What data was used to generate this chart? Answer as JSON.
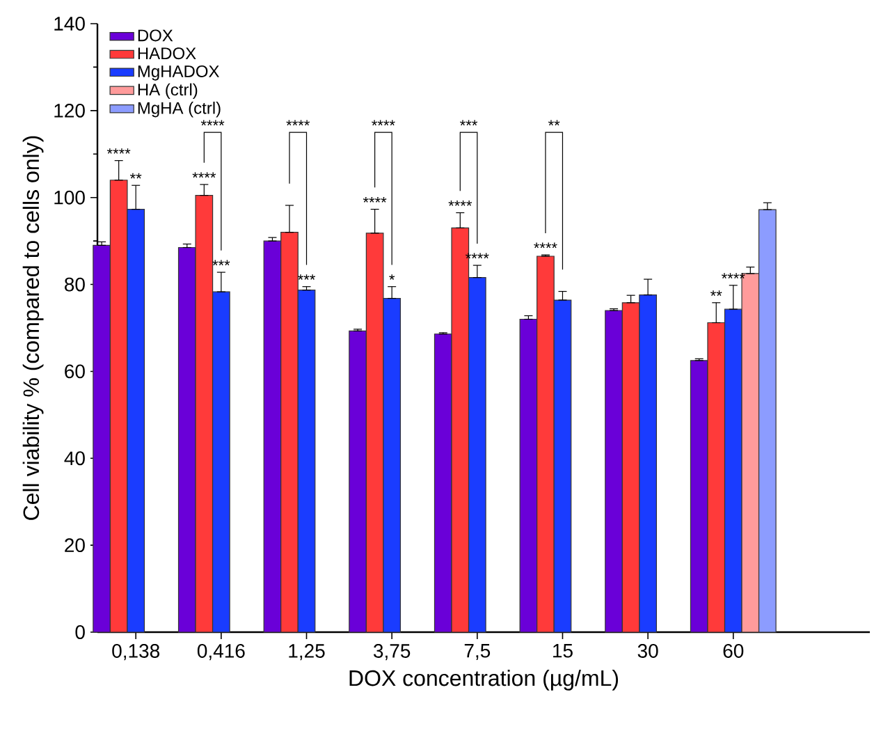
{
  "chart_data": {
    "type": "bar",
    "xlabel": "DOX concentration (µg/mL)",
    "ylabel": "Cell viability % (compared to cells only)",
    "categories": [
      "0,138",
      "0,416",
      "1,25",
      "3,75",
      "7,5",
      "15",
      "30",
      "60"
    ],
    "series": [
      {
        "name": "DOX",
        "color": "#6a00d8",
        "values": [
          89,
          88.5,
          90,
          69.3,
          68.6,
          72,
          74,
          62.5
        ],
        "errors": [
          [
            89,
            89.8
          ],
          [
            88.5,
            89.3
          ],
          [
            90,
            90.8
          ],
          [
            69.3,
            69.7
          ],
          [
            68.6,
            68.9
          ],
          [
            72,
            72.8
          ],
          [
            74,
            74.4
          ],
          [
            62.5,
            62.9
          ]
        ]
      },
      {
        "name": "HADOX",
        "color": "#ff3a3a",
        "values": [
          104,
          100.5,
          92,
          91.8,
          93,
          86.5,
          75.8,
          71.2
        ],
        "errors": [
          [
            104,
            108.5
          ],
          [
            100.5,
            103
          ],
          [
            92,
            98.2
          ],
          [
            91.8,
            97.3
          ],
          [
            93,
            96.5
          ],
          [
            86.5,
            86.8
          ],
          [
            75.8,
            77.5
          ],
          [
            71.2,
            75.8
          ]
        ]
      },
      {
        "name": "MgHADOX",
        "color": "#1a3cff",
        "values": [
          97.3,
          78.3,
          78.7,
          76.8,
          81.6,
          76.4,
          77.6,
          74.3
        ],
        "errors": [
          [
            97.3,
            102.8
          ],
          [
            78.3,
            82.8
          ],
          [
            78.7,
            79.5
          ],
          [
            76.8,
            79.5
          ],
          [
            81.6,
            84.4
          ],
          [
            76.4,
            78.4
          ],
          [
            77.6,
            81.2
          ],
          [
            74.3,
            79.8
          ]
        ]
      },
      {
        "name": "HA (ctrl)",
        "color": "#ff9b9b",
        "values": [
          null,
          null,
          null,
          null,
          null,
          null,
          null,
          82.5
        ],
        "errors": [
          null,
          null,
          null,
          null,
          null,
          null,
          null,
          [
            82.5,
            84
          ]
        ]
      },
      {
        "name": "MgHA (ctrl)",
        "color": "#8c9cff",
        "values": [
          null,
          null,
          null,
          null,
          null,
          null,
          null,
          97.2
        ],
        "errors": [
          null,
          null,
          null,
          null,
          null,
          null,
          null,
          [
            97.2,
            98.8
          ]
        ]
      }
    ],
    "ylim": [
      0,
      140
    ],
    "yticks": [
      0,
      20,
      40,
      60,
      80,
      100,
      120,
      140
    ],
    "legend": "top left",
    "annotations": [
      "****",
      "**",
      "****",
      "****",
      "***",
      "****",
      "***",
      "****",
      "****",
      "*",
      "***",
      "****",
      "****",
      "**",
      "****",
      "**",
      "****"
    ]
  }
}
